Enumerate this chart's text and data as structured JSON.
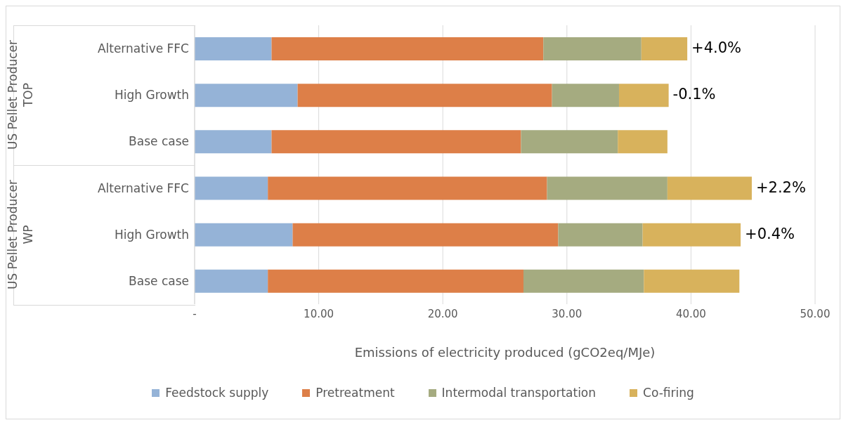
{
  "chart_data": {
    "type": "bar",
    "orientation": "horizontal",
    "stacked": true,
    "xlabel": "Emissions of electricity produced (gCO2eq/MJe)",
    "categories": [
      "Alternative FFC",
      "High Growth",
      "Base case",
      "Alternative FFC",
      "High Growth",
      "Base case"
    ],
    "annotations": [
      "US Pellet Producer TOP",
      "US Pellet Producer WP",
      {
        "text": "+4.0%",
        "x": 39.7,
        "y": "Alternative FFC"
      },
      {
        "text": "-0.1%",
        "x": 38.2,
        "y": "High Growth"
      },
      "+2.2%",
      "+0.4%"
    ],
    "series": [
      {
        "name": "Feedstock supply",
        "color": "#95b3d7",
        "values": [
          6.2,
          8.3,
          6.2,
          5.9,
          7.9,
          5.9
        ]
      },
      {
        "name": "Pretreatment",
        "color": "#dd7f48",
        "values": [
          21.9,
          20.5,
          20.1,
          22.5,
          21.4,
          20.6
        ]
      },
      {
        "name": "Intermodal transportation",
        "color": "#a5ab80",
        "values": [
          7.9,
          5.4,
          7.8,
          9.7,
          6.8,
          9.7
        ]
      },
      {
        "name": "Co-firing",
        "color": "#d8b25c",
        "values": [
          3.7,
          4.0,
          4.0,
          6.8,
          7.9,
          7.7
        ]
      }
    ],
    "xlim": [
      0,
      50
    ],
    "xticks": [
      {
        "value": 0,
        "label": "-"
      },
      {
        "value": 10,
        "label": "10.00"
      },
      {
        "value": 20,
        "label": "20.00"
      },
      {
        "value": 30,
        "label": "30.00"
      },
      {
        "value": 40,
        "label": "40.00"
      },
      {
        "value": 50,
        "label": "50.00"
      }
    ],
    "grid": "x",
    "legend": "bottom"
  }
}
